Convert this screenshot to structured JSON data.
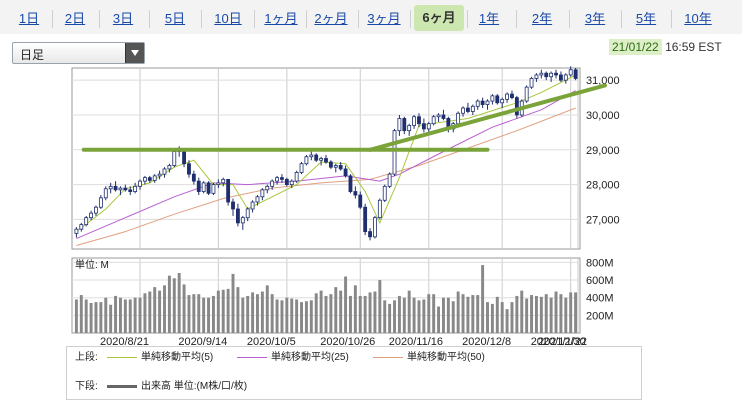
{
  "tabs": [
    {
      "label": "1日",
      "active": false
    },
    {
      "label": "2日",
      "active": false
    },
    {
      "label": "3日",
      "active": false
    },
    {
      "label": "5日",
      "active": false
    },
    {
      "label": "10日",
      "active": false
    },
    {
      "label": "1ヶ月",
      "active": false
    },
    {
      "label": "2ヶ月",
      "active": false
    },
    {
      "label": "3ヶ月",
      "active": false
    },
    {
      "label": "6ヶ月",
      "active": true
    },
    {
      "label": "1年",
      "active": false
    },
    {
      "label": "2年",
      "active": false
    },
    {
      "label": "3年",
      "active": false
    },
    {
      "label": "5年",
      "active": false
    },
    {
      "label": "10年",
      "active": false
    }
  ],
  "chart_type_select": {
    "value": "日足"
  },
  "timestamp": {
    "date": "21/01/22",
    "time": "16:59 EST"
  },
  "colors": {
    "accent_tab": "#cde7b0",
    "up_candle": "#ffffff",
    "down_candle": "#1f2f6e",
    "ma5": "#a8c83c",
    "ma25": "#b85fd0",
    "ma50": "#e0a080",
    "trendline": "#7aa33a",
    "volume": "#888888"
  },
  "chart_data": {
    "type": "candlestick",
    "price_axis": {
      "ticks": [
        "27,000",
        "28,000",
        "29,000",
        "30,000",
        "31,000"
      ],
      "range": [
        26150,
        31350
      ]
    },
    "volume_axis": {
      "unit_label": "単位: M",
      "ticks": [
        "200M",
        "400M",
        "600M",
        "800M"
      ],
      "range": [
        0,
        850
      ]
    },
    "x_ticks": [
      "2020/8/21",
      "2020/9/14",
      "2020/10/5",
      "2020/10/26",
      "2020/11/16",
      "2020/12/8",
      "2020/12/30",
      "2021/1/22"
    ],
    "ohlc": [
      [
        26600,
        26780,
        26480,
        26720
      ],
      [
        26720,
        26900,
        26650,
        26850
      ],
      [
        26850,
        27100,
        26800,
        27050
      ],
      [
        27050,
        27250,
        26980,
        27180
      ],
      [
        27180,
        27400,
        27100,
        27350
      ],
      [
        27350,
        27700,
        27300,
        27620
      ],
      [
        27620,
        27950,
        27550,
        27880
      ],
      [
        27880,
        28050,
        27750,
        27950
      ],
      [
        27950,
        28100,
        27800,
        27850
      ],
      [
        27850,
        27950,
        27700,
        27900
      ],
      [
        27900,
        28000,
        27800,
        27850
      ],
      [
        27850,
        27950,
        27700,
        27800
      ],
      [
        27800,
        28050,
        27750,
        27950
      ],
      [
        27950,
        28150,
        27850,
        28100
      ],
      [
        28100,
        28250,
        28000,
        28200
      ],
      [
        28200,
        28250,
        28050,
        28120
      ],
      [
        28120,
        28300,
        28050,
        28250
      ],
      [
        28250,
        28400,
        28150,
        28300
      ],
      [
        28300,
        28500,
        28200,
        28450
      ],
      [
        28450,
        28600,
        28350,
        28550
      ],
      [
        28550,
        29000,
        28500,
        28950
      ],
      [
        28950,
        29100,
        28800,
        29000
      ],
      [
        29000,
        29050,
        28500,
        28600
      ],
      [
        28600,
        28700,
        28200,
        28300
      ],
      [
        28300,
        28400,
        28000,
        28100
      ],
      [
        28100,
        28200,
        27700,
        27800
      ],
      [
        27800,
        28100,
        27750,
        28050
      ],
      [
        28050,
        28100,
        27700,
        27750
      ],
      [
        27750,
        28050,
        27700,
        28000
      ],
      [
        28000,
        28150,
        27900,
        28050
      ],
      [
        28050,
        28200,
        27950,
        28150
      ],
      [
        28150,
        28100,
        27400,
        27500
      ],
      [
        27500,
        27600,
        27100,
        27300
      ],
      [
        27300,
        27450,
        26800,
        26900
      ],
      [
        26900,
        27100,
        26700,
        27050
      ],
      [
        27050,
        27350,
        26950,
        27300
      ],
      [
        27300,
        27550,
        27200,
        27500
      ],
      [
        27500,
        27700,
        27400,
        27650
      ],
      [
        27650,
        27900,
        27550,
        27850
      ],
      [
        27850,
        28000,
        27750,
        27950
      ],
      [
        27950,
        28150,
        27850,
        28100
      ],
      [
        28100,
        28250,
        28000,
        28200
      ],
      [
        28200,
        28300,
        28050,
        28150
      ],
      [
        28150,
        28200,
        27950,
        28000
      ],
      [
        28000,
        28150,
        27900,
        28100
      ],
      [
        28100,
        28400,
        28050,
        28350
      ],
      [
        28350,
        28650,
        28300,
        28600
      ],
      [
        28600,
        28850,
        28550,
        28800
      ],
      [
        28800,
        28950,
        28700,
        28850
      ],
      [
        28850,
        28900,
        28650,
        28700
      ],
      [
        28700,
        28800,
        28550,
        28750
      ],
      [
        28750,
        28850,
        28600,
        28650
      ],
      [
        28650,
        28700,
        28450,
        28500
      ],
      [
        28500,
        28600,
        28350,
        28550
      ],
      [
        28550,
        28650,
        28400,
        28450
      ],
      [
        28450,
        28550,
        28200,
        28250
      ],
      [
        28250,
        28300,
        27750,
        27800
      ],
      [
        27800,
        27950,
        27600,
        27700
      ],
      [
        27700,
        27800,
        27300,
        27350
      ],
      [
        27350,
        27450,
        26550,
        26650
      ],
      [
        26650,
        26750,
        26400,
        26500
      ],
      [
        26500,
        27100,
        26450,
        27050
      ],
      [
        27050,
        27600,
        27000,
        27550
      ],
      [
        27550,
        28000,
        27500,
        27950
      ],
      [
        27950,
        28350,
        27900,
        28300
      ],
      [
        28300,
        29600,
        28250,
        29550
      ],
      [
        29550,
        30000,
        29400,
        29900
      ],
      [
        29900,
        29950,
        29450,
        29550
      ],
      [
        29550,
        29750,
        29400,
        29700
      ],
      [
        29700,
        30000,
        29600,
        29950
      ],
      [
        29950,
        30050,
        29650,
        29750
      ],
      [
        29750,
        29900,
        29500,
        29600
      ],
      [
        29600,
        29800,
        29500,
        29750
      ],
      [
        29750,
        30000,
        29700,
        29950
      ],
      [
        29950,
        30050,
        29800,
        30000
      ],
      [
        30000,
        30150,
        29850,
        29900
      ],
      [
        29900,
        29950,
        29500,
        29600
      ],
      [
        29600,
        29800,
        29500,
        29750
      ],
      [
        29750,
        30100,
        29700,
        30050
      ],
      [
        30050,
        30250,
        29950,
        30200
      ],
      [
        30200,
        30350,
        30050,
        30100
      ],
      [
        30100,
        30300,
        30000,
        30250
      ],
      [
        30250,
        30450,
        30150,
        30400
      ],
      [
        30400,
        30500,
        30200,
        30300
      ],
      [
        30300,
        30450,
        30150,
        30400
      ],
      [
        30400,
        30600,
        30300,
        30550
      ],
      [
        30550,
        30600,
        30300,
        30350
      ],
      [
        30350,
        30500,
        30200,
        30450
      ],
      [
        30450,
        30650,
        30350,
        30600
      ],
      [
        30600,
        30700,
        30450,
        30500
      ],
      [
        30500,
        30550,
        29900,
        30000
      ],
      [
        30000,
        30450,
        29950,
        30400
      ],
      [
        30400,
        30850,
        30350,
        30800
      ],
      [
        30800,
        31100,
        30750,
        31050
      ],
      [
        31050,
        31200,
        30950,
        31150
      ],
      [
        31150,
        31300,
        31050,
        31200
      ],
      [
        31200,
        31250,
        31000,
        31100
      ],
      [
        31100,
        31250,
        30950,
        31200
      ],
      [
        31200,
        31300,
        31050,
        31150
      ],
      [
        31150,
        31250,
        30950,
        31000
      ],
      [
        31000,
        31200,
        30900,
        31150
      ],
      [
        31150,
        31400,
        31100,
        31300
      ],
      [
        31300,
        31350,
        31000,
        31050
      ]
    ],
    "ma5": [
      [
        0,
        26650
      ],
      [
        6,
        27300
      ],
      [
        10,
        27880
      ],
      [
        15,
        28050
      ],
      [
        20,
        28500
      ],
      [
        24,
        28700
      ],
      [
        28,
        28000
      ],
      [
        32,
        28000
      ],
      [
        35,
        27300
      ],
      [
        40,
        27650
      ],
      [
        45,
        28000
      ],
      [
        50,
        28650
      ],
      [
        55,
        28600
      ],
      [
        59,
        27800
      ],
      [
        62,
        26900
      ],
      [
        66,
        28200
      ],
      [
        70,
        29700
      ],
      [
        80,
        29900
      ],
      [
        90,
        30350
      ],
      [
        95,
        30650
      ],
      [
        102,
        31150
      ]
    ],
    "ma25": [
      [
        0,
        26450
      ],
      [
        10,
        27050
      ],
      [
        20,
        27650
      ],
      [
        28,
        28050
      ],
      [
        35,
        28000
      ],
      [
        45,
        28100
      ],
      [
        55,
        28250
      ],
      [
        62,
        28100
      ],
      [
        66,
        28300
      ],
      [
        75,
        28950
      ],
      [
        85,
        29650
      ],
      [
        95,
        30150
      ],
      [
        102,
        30700
      ]
    ],
    "ma50": [
      [
        0,
        26250
      ],
      [
        10,
        26650
      ],
      [
        20,
        27150
      ],
      [
        30,
        27600
      ],
      [
        40,
        27900
      ],
      [
        50,
        28050
      ],
      [
        60,
        28150
      ],
      [
        70,
        28550
      ],
      [
        80,
        29050
      ],
      [
        90,
        29550
      ],
      [
        102,
        30200
      ]
    ],
    "volumes": [
      380,
      430,
      380,
      340,
      350,
      350,
      400,
      320,
      420,
      400,
      380,
      380,
      400,
      400,
      450,
      470,
      520,
      480,
      540,
      650,
      620,
      680,
      550,
      430,
      440,
      440,
      400,
      400,
      420,
      480,
      490,
      500,
      670,
      520,
      400,
      420,
      460,
      440,
      470,
      540,
      440,
      380,
      370,
      400,
      390,
      380,
      350,
      360,
      370,
      450,
      480,
      420,
      440,
      520,
      480,
      640,
      420,
      540,
      420,
      420,
      460,
      470,
      600,
      370,
      330,
      370,
      420,
      400,
      480,
      400,
      370,
      380,
      440,
      440,
      300,
      400,
      400,
      360,
      470,
      440,
      410,
      430,
      430,
      770,
      350,
      330,
      410,
      350,
      270,
      350,
      420,
      480,
      390,
      430,
      420,
      410,
      440,
      400,
      470,
      440,
      400,
      460,
      460
    ],
    "trendlines": [
      {
        "x1_index": 1.5,
        "y1": 29000,
        "x2_index": 84,
        "y2": 29000
      },
      {
        "x1_index": 60,
        "y1": 29000,
        "x2_index": 108,
        "y2": 30850
      }
    ]
  },
  "legend": {
    "upper_label": "上段:",
    "lower_label": "下段:",
    "items": [
      {
        "label": "単純移動平均(5)",
        "color": "#a8c83c"
      },
      {
        "label": "単純移動平均(25)",
        "color": "#b85fd0"
      },
      {
        "label": "単純移動平均(50)",
        "color": "#e0a080"
      }
    ],
    "volume_label": "出来高 単位:(M株/口/枚)"
  }
}
